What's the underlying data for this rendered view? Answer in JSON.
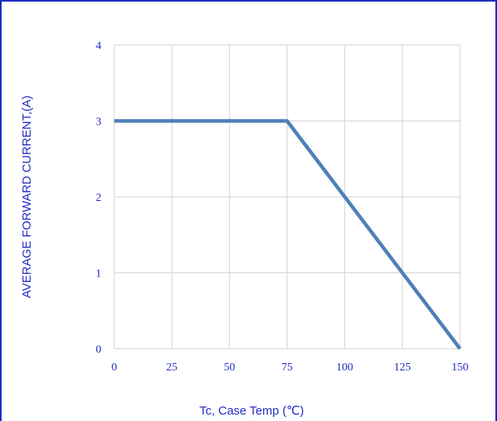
{
  "chart_data": {
    "type": "line",
    "title": "",
    "xlabel": "Tc, Case Temp (℃)",
    "ylabel": "AVERAGE FORWARD CURRENT,(A)",
    "xlim": [
      0,
      150
    ],
    "ylim": [
      0,
      4
    ],
    "xticks": [
      "0",
      "25",
      "50",
      "75",
      "100",
      "125",
      "150"
    ],
    "yticks": [
      "0",
      "1",
      "2",
      "3",
      "4"
    ],
    "grid": true,
    "series": [
      {
        "x": [
          0,
          75,
          150
        ],
        "y": [
          3,
          3,
          0
        ]
      }
    ],
    "colors": {
      "line": "#4e80b9",
      "text": "#1f2bc4",
      "grid": "#d9d9d9",
      "frame": "#1f2bc4"
    }
  }
}
